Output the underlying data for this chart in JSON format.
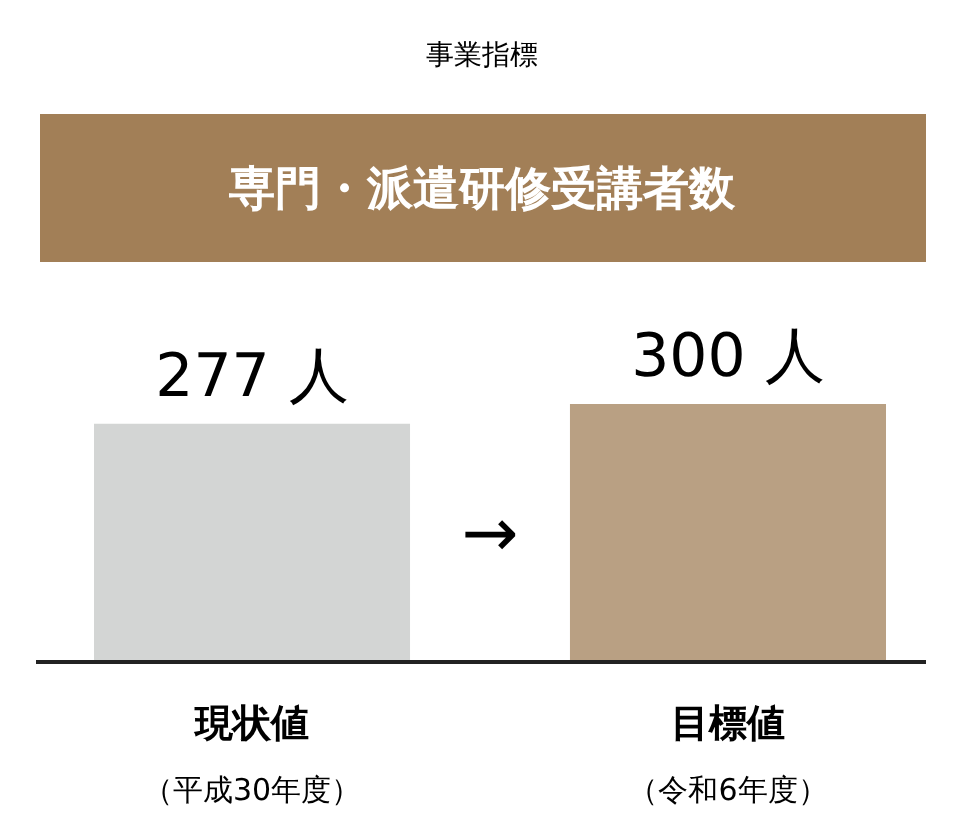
{
  "chart_data": {
    "type": "bar",
    "title": "事業指標",
    "subtitle": "専門・派遣研修受講者数",
    "categories": [
      "現状値",
      "目標値"
    ],
    "values": [
      277,
      300
    ],
    "colors": [
      "#d3d5d4",
      "#b9a083"
    ],
    "value_labels": [
      "277 人",
      "300 人"
    ],
    "annotations": [
      "→",
      "（平成30年度）",
      "（令和6年度）"
    ]
  }
}
